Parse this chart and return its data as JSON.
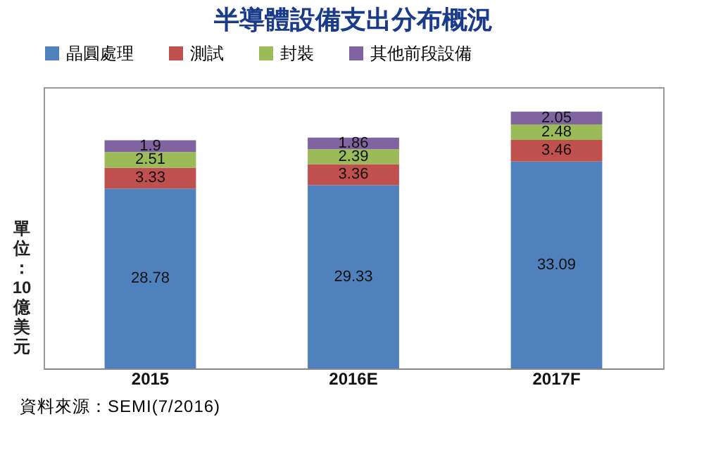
{
  "chart_data": {
    "type": "bar",
    "title": "半導體設備支出分布概況",
    "ylabel": "單位：10億美元",
    "categories": [
      "2015",
      "2016E",
      "2017F"
    ],
    "stacked": true,
    "data_labels": true,
    "legend": "top",
    "grid": false,
    "series": [
      {
        "name": "晶圓處理",
        "color": "#4f81bd",
        "values": [
          28.78,
          29.33,
          33.09
        ]
      },
      {
        "name": "測試",
        "color": "#c0504d",
        "values": [
          3.33,
          3.36,
          3.46
        ]
      },
      {
        "name": "封裝",
        "color": "#9bbb59",
        "values": [
          2.51,
          2.39,
          2.48
        ]
      },
      {
        "name": "其他前段設備",
        "color": "#8064a2",
        "values": [
          1.9,
          1.86,
          2.05
        ]
      }
    ],
    "annotations": [
      "資料來源：SEMI(7/2016)"
    ]
  }
}
